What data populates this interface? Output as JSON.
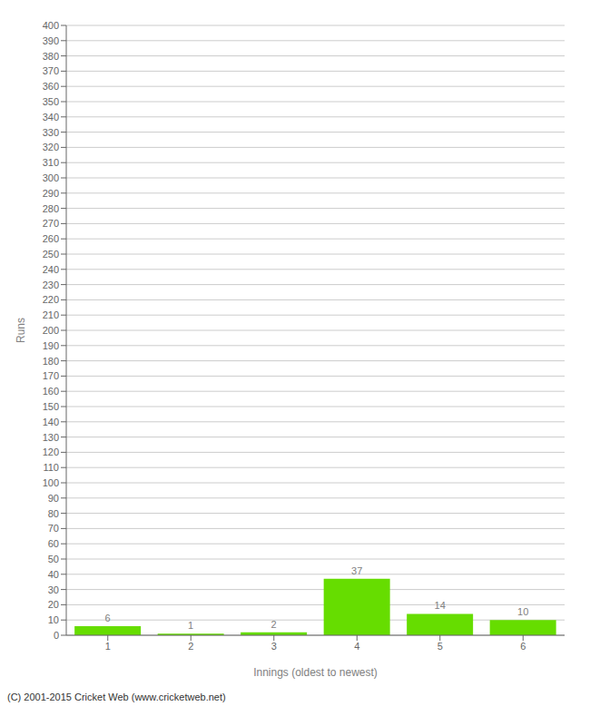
{
  "chart_data": {
    "type": "bar",
    "categories": [
      "1",
      "2",
      "3",
      "4",
      "5",
      "6"
    ],
    "values": [
      6,
      1,
      2,
      37,
      14,
      10
    ],
    "color": "#66dd00",
    "xlabel": "Innings (oldest to newest)",
    "ylabel": "Runs",
    "ylim": [
      0,
      400
    ],
    "yticks": [
      0,
      10,
      20,
      30,
      40,
      50,
      60,
      70,
      80,
      90,
      100,
      110,
      120,
      130,
      140,
      150,
      160,
      170,
      180,
      190,
      200,
      210,
      220,
      230,
      240,
      250,
      260,
      270,
      280,
      290,
      300,
      310,
      320,
      330,
      340,
      350,
      360,
      370,
      380,
      390,
      400
    ],
    "grid": true,
    "data_labels": true,
    "footer": "(C) 2001-2015 Cricket Web (www.cricketweb.net)"
  }
}
